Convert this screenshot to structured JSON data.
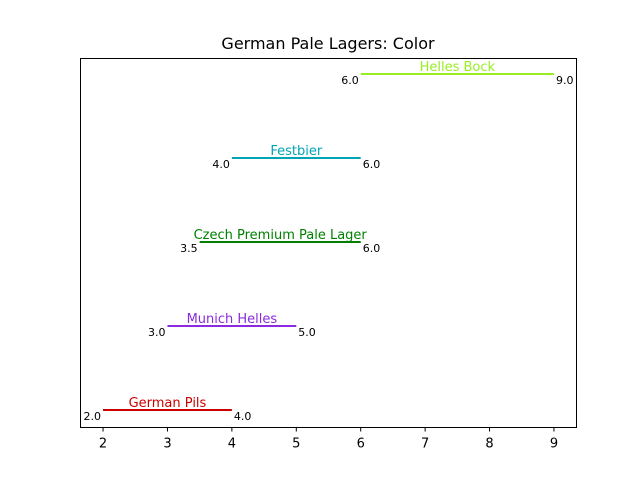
{
  "chart_data": {
    "type": "range",
    "title": "German Pale Lagers: Color",
    "xlabel": "",
    "ylabel": "",
    "xlim": [
      1.65,
      9.35
    ],
    "x_ticks": [
      2,
      3,
      4,
      5,
      6,
      7,
      8,
      9
    ],
    "x_tick_labels": [
      "2",
      "3",
      "4",
      "5",
      "6",
      "7",
      "8",
      "9"
    ],
    "grid": false,
    "series": [
      {
        "name": "German Pils",
        "min": 2.0,
        "max": 4.0,
        "min_label": "2.0",
        "max_label": "4.0",
        "color": "#cc0000"
      },
      {
        "name": "Munich Helles",
        "min": 3.0,
        "max": 5.0,
        "min_label": "3.0",
        "max_label": "5.0",
        "color": "#8a2be2"
      },
      {
        "name": "Czech Premium Pale Lager",
        "min": 3.5,
        "max": 6.0,
        "min_label": "3.5",
        "max_label": "6.0",
        "color": "#008000"
      },
      {
        "name": "Festbier",
        "min": 4.0,
        "max": 6.0,
        "min_label": "4.0",
        "max_label": "6.0",
        "color": "#00a5b5"
      },
      {
        "name": "Helles Bock",
        "min": 6.0,
        "max": 9.0,
        "min_label": "6.0",
        "max_label": "9.0",
        "color": "#99ee22"
      }
    ]
  }
}
